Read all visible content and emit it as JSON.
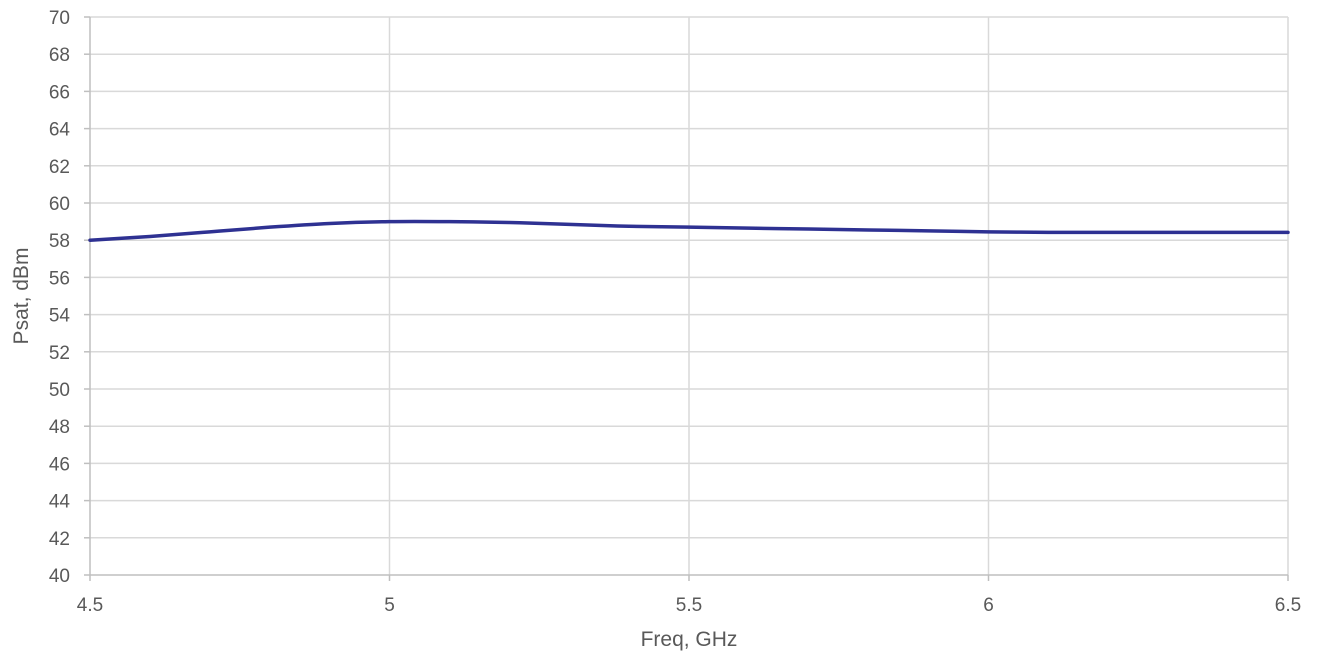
{
  "chart_data": {
    "type": "line",
    "title": "",
    "xlabel": "Freq, GHz",
    "ylabel": "Psat, dBm",
    "xlim": [
      4.5,
      6.5
    ],
    "ylim": [
      40,
      70
    ],
    "x_ticks": [
      "4.5",
      "5",
      "5.5",
      "6",
      "6.5"
    ],
    "y_ticks": [
      "40",
      "42",
      "44",
      "46",
      "48",
      "50",
      "52",
      "54",
      "56",
      "58",
      "60",
      "62",
      "64",
      "66",
      "68",
      "70"
    ],
    "grid": true,
    "legend": "none",
    "series": [
      {
        "color": "#2E3192",
        "x": [
          4.5,
          4.6,
          4.7,
          4.8,
          4.9,
          5.0,
          5.1,
          5.2,
          5.3,
          5.4,
          5.5,
          5.6,
          5.7,
          5.8,
          5.9,
          6.0,
          6.1,
          6.2,
          6.3,
          6.4,
          6.5
        ],
        "y": [
          58.0,
          58.2,
          58.45,
          58.7,
          58.9,
          59.0,
          59.0,
          58.95,
          58.85,
          58.75,
          58.7,
          58.65,
          58.6,
          58.55,
          58.5,
          58.45,
          58.42,
          58.42,
          58.42,
          58.42,
          58.42
        ]
      }
    ],
    "colors": {
      "grid": "#D9D9D9",
      "axis": "#BFBFBF",
      "text": "#595959"
    }
  }
}
